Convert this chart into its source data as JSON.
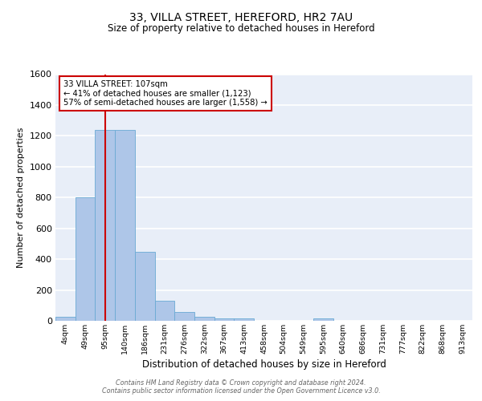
{
  "title_line1": "33, VILLA STREET, HEREFORD, HR2 7AU",
  "title_line2": "Size of property relative to detached houses in Hereford",
  "xlabel": "Distribution of detached houses by size in Hereford",
  "ylabel": "Number of detached properties",
  "bin_labels": [
    "4sqm",
    "49sqm",
    "95sqm",
    "140sqm",
    "186sqm",
    "231sqm",
    "276sqm",
    "322sqm",
    "367sqm",
    "413sqm",
    "458sqm",
    "504sqm",
    "549sqm",
    "595sqm",
    "640sqm",
    "686sqm",
    "731sqm",
    "777sqm",
    "822sqm",
    "868sqm",
    "913sqm"
  ],
  "bar_values": [
    25,
    800,
    1240,
    1240,
    450,
    130,
    55,
    25,
    15,
    15,
    0,
    0,
    0,
    15,
    0,
    0,
    0,
    0,
    0,
    0,
    0
  ],
  "bar_color": "#aec6e8",
  "bar_edge_color": "#6aaad4",
  "bg_color": "#e8eef8",
  "grid_color": "#d0d8e8",
  "vline_x": 2,
  "vline_color": "#cc0000",
  "annotation_text": "33 VILLA STREET: 107sqm\n← 41% of detached houses are smaller (1,123)\n57% of semi-detached houses are larger (1,558) →",
  "annotation_box_color": "#ffffff",
  "annotation_box_edge": "#cc0000",
  "footer_text": "Contains HM Land Registry data © Crown copyright and database right 2024.\nContains public sector information licensed under the Open Government Licence v3.0.",
  "ylim": [
    0,
    1600
  ],
  "yticks": [
    0,
    200,
    400,
    600,
    800,
    1000,
    1200,
    1400,
    1600
  ]
}
